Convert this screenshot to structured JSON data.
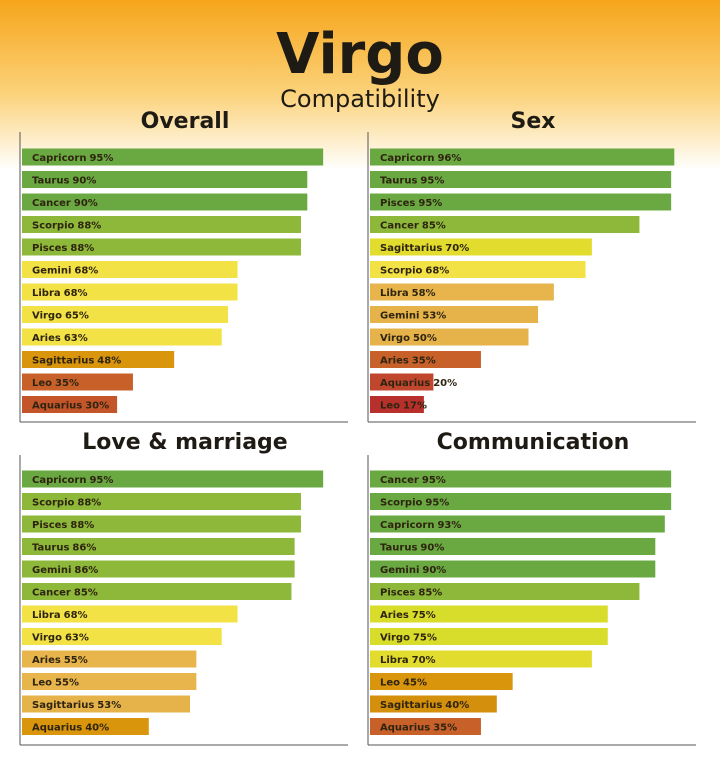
{
  "header": {
    "title": "Virgo",
    "subtitle": "Compatibility"
  },
  "chart_data": [
    {
      "type": "bar",
      "orientation": "horizontal",
      "title": "Overall",
      "categories": [
        "Capricorn",
        "Taurus",
        "Cancer",
        "Scorpio",
        "Pisces",
        "Gemini",
        "Libra",
        "Virgo",
        "Aries",
        "Sagittarius",
        "Leo",
        "Aquarius"
      ],
      "values": [
        95,
        90,
        90,
        88,
        88,
        68,
        68,
        65,
        63,
        48,
        35,
        30
      ],
      "value_labels": [
        "95%",
        "90%",
        "90%",
        "88%",
        "88%",
        "68%",
        "68%",
        "65%",
        "63%",
        "48%",
        "35%",
        "30%"
      ],
      "colors": [
        "#6aa842",
        "#6aa842",
        "#6aa842",
        "#8db83a",
        "#8db83a",
        "#f3e246",
        "#f3e246",
        "#f3e246",
        "#f3e246",
        "#d9950c",
        "#c8602a",
        "#c4552a"
      ],
      "xlim": [
        0,
        100
      ]
    },
    {
      "type": "bar",
      "orientation": "horizontal",
      "title": "Sex",
      "categories": [
        "Capricorn",
        "Taurus",
        "Pisces",
        "Cancer",
        "Sagittarius",
        "Scorpio",
        "Libra",
        "Gemini",
        "Virgo",
        "Aries",
        "Aquarius",
        "Leo"
      ],
      "values": [
        96,
        95,
        95,
        85,
        70,
        68,
        58,
        53,
        50,
        35,
        20,
        17
      ],
      "value_labels": [
        "96%",
        "95%",
        "95%",
        "85%",
        "70%",
        "68%",
        "58%",
        "53%",
        "50%",
        "35%",
        "20%",
        "17%"
      ],
      "colors": [
        "#6aa842",
        "#6aa842",
        "#6aa842",
        "#8db83a",
        "#e2dc2e",
        "#f3e246",
        "#e8b54c",
        "#e6b24a",
        "#e6b24a",
        "#c8602a",
        "#c0462e",
        "#b8302c"
      ],
      "xlim": [
        0,
        100
      ]
    },
    {
      "type": "bar",
      "orientation": "horizontal",
      "title": "Love & marriage",
      "categories": [
        "Capricorn",
        "Scorpio",
        "Pisces",
        "Taurus",
        "Gemini",
        "Cancer",
        "Libra",
        "Virgo",
        "Aries",
        "Leo",
        "Sagittarius",
        "Aquarius"
      ],
      "values": [
        95,
        88,
        88,
        86,
        86,
        85,
        68,
        63,
        55,
        55,
        53,
        40
      ],
      "value_labels": [
        "95%",
        "88%",
        "88%",
        "86%",
        "86%",
        "85%",
        "68%",
        "63%",
        "55%",
        "55%",
        "53%",
        "40%"
      ],
      "colors": [
        "#6aa842",
        "#8db83a",
        "#8db83a",
        "#8db83a",
        "#8db83a",
        "#8db83a",
        "#f3e246",
        "#f3e246",
        "#e8b54c",
        "#e8b54c",
        "#e6b24a",
        "#d9950c"
      ],
      "xlim": [
        0,
        100
      ]
    },
    {
      "type": "bar",
      "orientation": "horizontal",
      "title": "Communication",
      "categories": [
        "Cancer",
        "Scorpio",
        "Capricorn",
        "Taurus",
        "Gemini",
        "Pisces",
        "Aries",
        "Virgo",
        "Libra",
        "Leo",
        "Sagittarius",
        "Aquarius"
      ],
      "values": [
        95,
        95,
        93,
        90,
        90,
        85,
        75,
        75,
        70,
        45,
        40,
        35
      ],
      "value_labels": [
        "95%",
        "95%",
        "93%",
        "90%",
        "90%",
        "85%",
        "75%",
        "75%",
        "70%",
        "45%",
        "40%",
        "35%"
      ],
      "colors": [
        "#6aa842",
        "#6aa842",
        "#6aa842",
        "#6aa842",
        "#6aa842",
        "#8db83a",
        "#d8dc2a",
        "#d8dc2a",
        "#e2dc2e",
        "#d9950c",
        "#d48f0c",
        "#c8602a"
      ],
      "xlim": [
        0,
        100
      ]
    }
  ]
}
